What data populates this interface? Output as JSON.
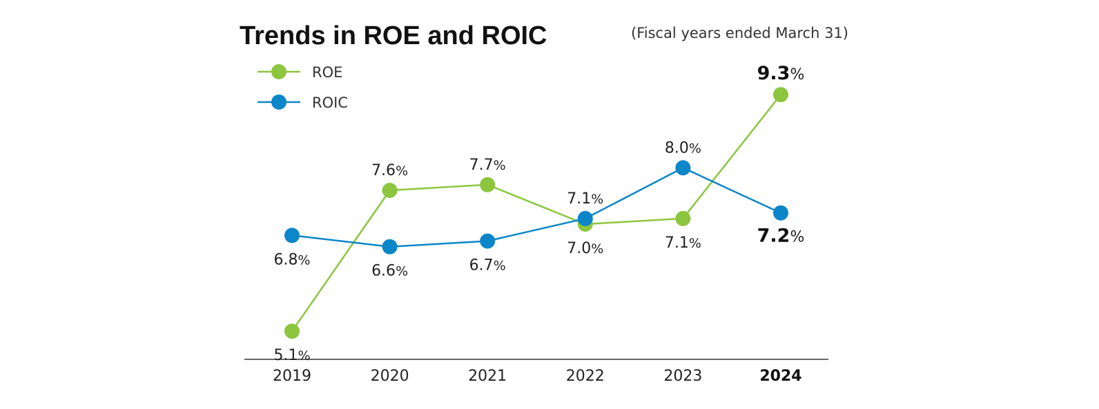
{
  "title": "Trends in ROE and ROIC",
  "note": "(Fiscal years ended March 31)",
  "colors": {
    "roe": "#8cc63f",
    "roic": "#0a86c9",
    "axis": "#333333"
  },
  "chart_data": {
    "type": "line",
    "title": "Trends in ROE and ROIC",
    "subtitle": "(Fiscal years ended March 31)",
    "xlabel": "",
    "ylabel": "",
    "grid": false,
    "legend_position": "top-left",
    "categories": [
      "2019",
      "2020",
      "2021",
      "2022",
      "2023",
      "2024"
    ],
    "highlight_category": "2024",
    "ylim": [
      4.6,
      10.0
    ],
    "series": [
      {
        "name": "ROE",
        "color": "#8cc63f",
        "values": [
          5.1,
          7.6,
          7.7,
          7.0,
          7.1,
          9.3
        ],
        "labels": [
          "5.1",
          "7.6",
          "7.7",
          "7.0",
          "7.1",
          "9.3"
        ],
        "label_position": [
          "below",
          "above",
          "above",
          "below",
          "below",
          "above"
        ]
      },
      {
        "name": "ROIC",
        "color": "#0a86c9",
        "values": [
          6.8,
          6.6,
          6.7,
          7.1,
          8.0,
          7.2
        ],
        "labels": [
          "6.8",
          "6.6",
          "6.7",
          "7.1",
          "8.0",
          "7.2"
        ],
        "label_position": [
          "below",
          "below",
          "below",
          "above",
          "above",
          "below"
        ]
      }
    ],
    "unit": "%"
  }
}
